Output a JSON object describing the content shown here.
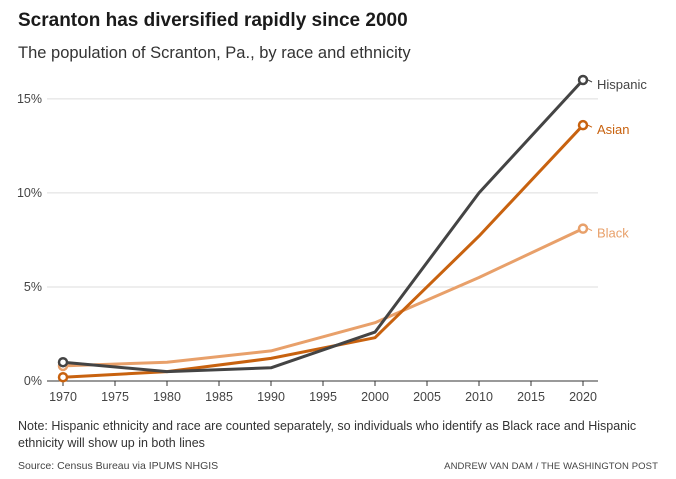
{
  "title": "Scranton has diversified rapidly since 2000",
  "subtitle": "The population of Scranton, Pa., by race and ethnicity",
  "note": "Note: Hispanic ethnicity and race are counted separately, so individuals who identify as Black race and Hispanic ethnicity will show up in both lines",
  "source": "Source: Census Bureau via IPUMS NHGIS",
  "credit": "ANDREW VAN DAM / THE WASHINGTON POST",
  "chart_data": {
    "type": "line",
    "title": "Scranton has diversified rapidly since 2000",
    "subtitle": "The population of Scranton, Pa., by race and ethnicity",
    "xlabel": "",
    "ylabel": "",
    "x_ticks": [
      1970,
      1975,
      1980,
      1985,
      1990,
      1995,
      2000,
      2005,
      2010,
      2015,
      2020
    ],
    "y_ticks": [
      0,
      5,
      10,
      15
    ],
    "y_tick_labels": [
      "0%",
      "5%",
      "10%",
      "15%"
    ],
    "xlim": [
      1970,
      2020
    ],
    "ylim": [
      0,
      16
    ],
    "grid": "horizontal",
    "legend": "direct-labels-right",
    "series": [
      {
        "name": "Black",
        "color": "#e8a06a",
        "x": [
          1970,
          1980,
          1990,
          2000,
          2010,
          2020
        ],
        "values": [
          0.8,
          1.0,
          1.6,
          3.1,
          5.5,
          8.1
        ]
      },
      {
        "name": "Asian",
        "color": "#c8620f",
        "x": [
          1970,
          1980,
          1990,
          2000,
          2010,
          2020
        ],
        "values": [
          0.2,
          0.5,
          1.2,
          2.3,
          7.7,
          13.6
        ]
      },
      {
        "name": "Hispanic",
        "color": "#444444",
        "x": [
          1970,
          1980,
          1990,
          2000,
          2010,
          2020
        ],
        "values": [
          1.0,
          0.5,
          0.7,
          2.6,
          10.0,
          16.0
        ]
      }
    ]
  }
}
